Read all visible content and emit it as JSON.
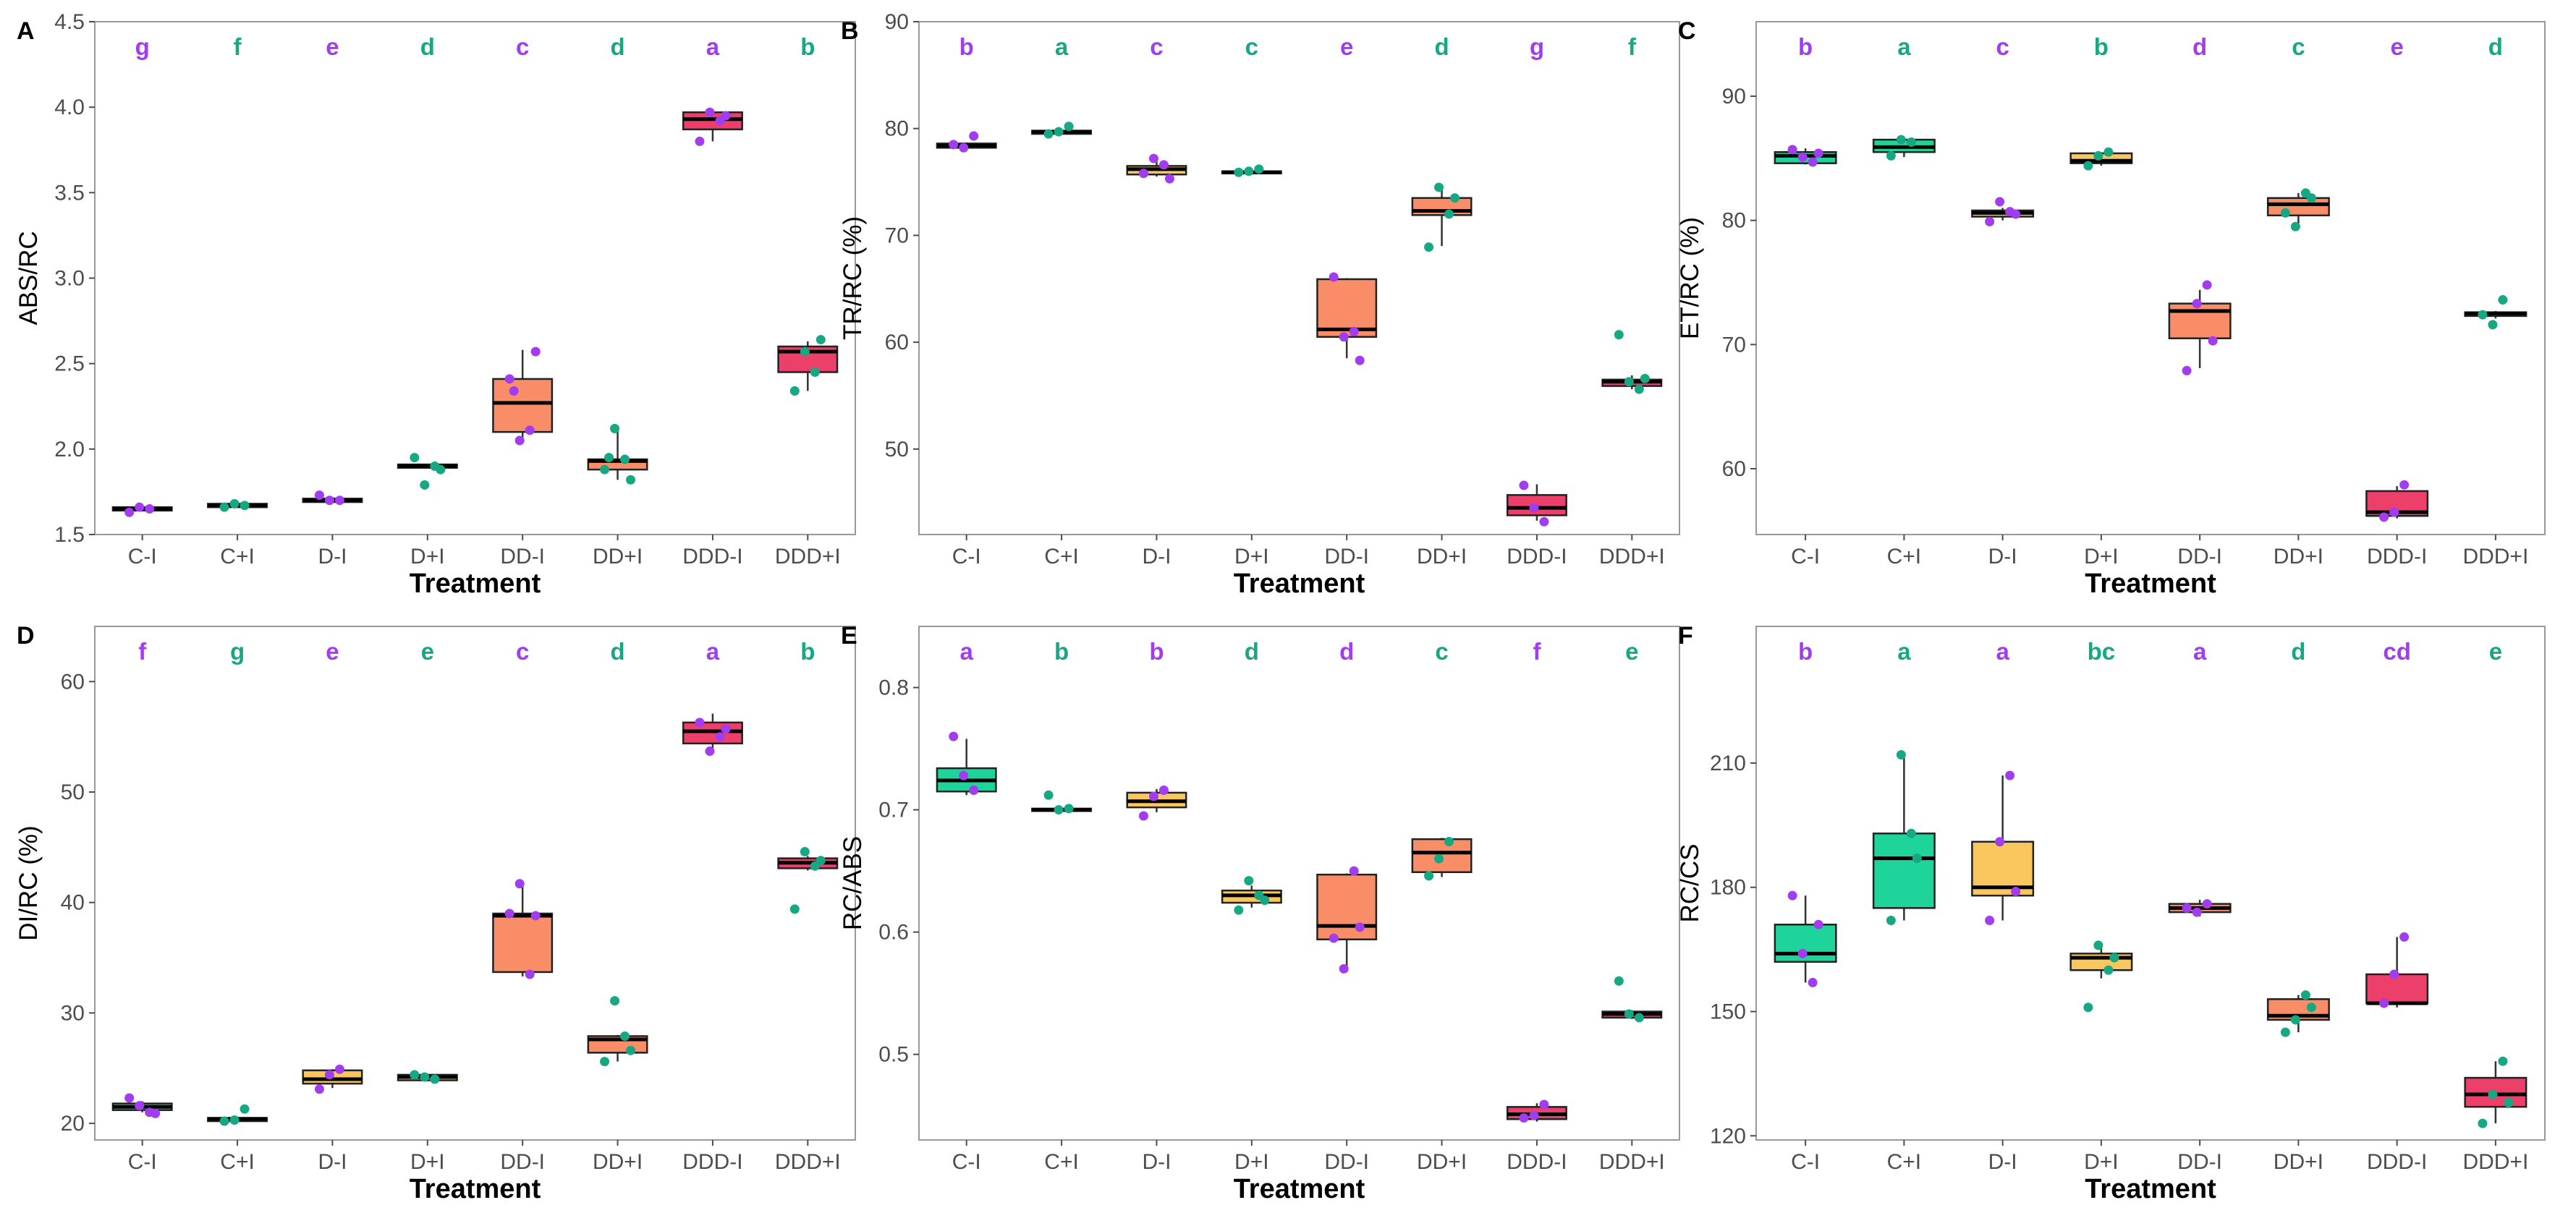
{
  "figure": {
    "point_colors": {
      "I_minus": "#a23cf0",
      "I_plus": "#16a882"
    },
    "box_colors": {
      "C": "#1fd49a",
      "D": "#f9c75d",
      "DD": "#f88d67",
      "DDD": "#ec3f6a"
    }
  },
  "chart_data": [
    {
      "type": "box",
      "panel": "A",
      "xlabel": "Treatment",
      "ylabel": "ABS/RC",
      "categories": [
        "C-I",
        "C+I",
        "D-I",
        "D+I",
        "DD-I",
        "DD+I",
        "DDD-I",
        "DDD+I"
      ],
      "ylim": [
        1.5,
        4.5
      ],
      "yticks": [
        1.5,
        2.0,
        2.5,
        3.0,
        3.5,
        4.0,
        4.5
      ],
      "ytick_labels": [
        "1.5",
        "2.0",
        "2.5",
        "3.0",
        "3.5",
        "4.0",
        "4.5"
      ],
      "letters": [
        "g",
        "f",
        "e",
        "d",
        "c",
        "d",
        "a",
        "b"
      ],
      "boxes": [
        {
          "q1": 1.64,
          "median": 1.65,
          "q3": 1.66,
          "lo": 1.64,
          "hi": 1.66,
          "points": [
            1.63,
            1.65,
            1.66
          ]
        },
        {
          "q1": 1.66,
          "median": 1.67,
          "q3": 1.68,
          "lo": 1.66,
          "hi": 1.68,
          "points": [
            1.66,
            1.67,
            1.68
          ]
        },
        {
          "q1": 1.69,
          "median": 1.7,
          "q3": 1.71,
          "lo": 1.69,
          "hi": 1.72,
          "points": [
            1.73,
            1.7,
            1.7
          ]
        },
        {
          "q1": 1.89,
          "median": 1.9,
          "q3": 1.91,
          "lo": 1.89,
          "hi": 1.91,
          "points": [
            1.95,
            1.9,
            1.79,
            1.88
          ]
        },
        {
          "q1": 2.1,
          "median": 2.27,
          "q3": 2.41,
          "lo": 2.05,
          "hi": 2.58,
          "points": [
            2.41,
            2.11,
            2.05,
            2.57,
            2.34
          ]
        },
        {
          "q1": 1.88,
          "median": 1.93,
          "q3": 1.94,
          "lo": 1.82,
          "hi": 2.12,
          "points": [
            1.88,
            1.94,
            2.12,
            1.82,
            1.95
          ]
        },
        {
          "q1": 3.87,
          "median": 3.93,
          "q3": 3.97,
          "lo": 3.8,
          "hi": 3.99,
          "points": [
            3.8,
            3.92,
            3.97,
            3.95
          ]
        },
        {
          "q1": 2.45,
          "median": 2.57,
          "q3": 2.6,
          "lo": 2.34,
          "hi": 2.63,
          "points": [
            2.34,
            2.45,
            2.57,
            2.64
          ]
        }
      ]
    },
    {
      "type": "box",
      "panel": "B",
      "xlabel": "Treatment",
      "ylabel": "TR/RC (%)",
      "categories": [
        "C-I",
        "C+I",
        "D-I",
        "D+I",
        "DD-I",
        "DD+I",
        "DDD-I",
        "DDD+I"
      ],
      "ylim": [
        42,
        90
      ],
      "yticks": [
        50,
        60,
        70,
        80,
        90
      ],
      "ytick_labels": [
        "50",
        "60",
        "70",
        "80",
        "90"
      ],
      "letters": [
        "b",
        "a",
        "c",
        "c",
        "e",
        "d",
        "g",
        "f"
      ],
      "boxes": [
        {
          "q1": 78.2,
          "median": 78.4,
          "q3": 78.6,
          "lo": 78.1,
          "hi": 78.7,
          "points": [
            78.5,
            79.3,
            78.2
          ]
        },
        {
          "q1": 79.5,
          "median": 79.7,
          "q3": 79.8,
          "lo": 79.4,
          "hi": 79.9,
          "points": [
            79.5,
            80.2,
            79.7
          ]
        },
        {
          "q1": 75.7,
          "median": 76.2,
          "q3": 76.5,
          "lo": 75.5,
          "hi": 77.0,
          "points": [
            75.8,
            76.6,
            77.2,
            75.3
          ]
        },
        {
          "q1": 75.8,
          "median": 75.9,
          "q3": 76.0,
          "lo": 75.7,
          "hi": 76.1,
          "points": [
            75.9,
            76.2,
            76.0
          ]
        },
        {
          "q1": 60.5,
          "median": 61.2,
          "q3": 65.9,
          "lo": 58.5,
          "hi": 66.0,
          "points": [
            66.1,
            61.0,
            60.5,
            58.3
          ]
        },
        {
          "q1": 71.9,
          "median": 72.3,
          "q3": 73.5,
          "lo": 69.0,
          "hi": 74.5,
          "points": [
            68.9,
            72.0,
            74.5,
            73.5
          ]
        },
        {
          "q1": 43.8,
          "median": 44.5,
          "q3": 45.7,
          "lo": 43.3,
          "hi": 46.7,
          "points": [
            46.6,
            43.2,
            44.5
          ]
        },
        {
          "q1": 55.9,
          "median": 56.3,
          "q3": 56.5,
          "lo": 55.6,
          "hi": 56.9,
          "points": [
            60.7,
            55.6,
            56.3,
            56.6
          ]
        }
      ]
    },
    {
      "type": "box",
      "panel": "C",
      "xlabel": "Treatment",
      "ylabel": "ET/RC (%)",
      "categories": [
        "C-I",
        "C+I",
        "D-I",
        "D+I",
        "DD-I",
        "DD+I",
        "DDD-I",
        "DDD+I"
      ],
      "ylim": [
        54.7,
        96
      ],
      "yticks": [
        60,
        70,
        80,
        90
      ],
      "ytick_labels": [
        "60",
        "70",
        "80",
        "90"
      ],
      "letters": [
        "b",
        "a",
        "c",
        "b",
        "d",
        "c",
        "e",
        "d"
      ],
      "boxes": [
        {
          "q1": 84.6,
          "median": 85.2,
          "q3": 85.5,
          "lo": 84.5,
          "hi": 85.8,
          "points": [
            85.7,
            84.7,
            85.1,
            85.4
          ]
        },
        {
          "q1": 85.5,
          "median": 85.9,
          "q3": 86.5,
          "lo": 85.1,
          "hi": 86.7,
          "points": [
            85.2,
            86.3,
            86.5
          ]
        },
        {
          "q1": 80.3,
          "median": 80.6,
          "q3": 80.8,
          "lo": 80.0,
          "hi": 81.0,
          "points": [
            79.9,
            80.7,
            81.5,
            80.5
          ]
        },
        {
          "q1": 84.6,
          "median": 84.8,
          "q3": 85.4,
          "lo": 84.4,
          "hi": 85.5,
          "points": [
            84.4,
            85.5,
            85.2
          ]
        },
        {
          "q1": 70.5,
          "median": 72.7,
          "q3": 73.3,
          "lo": 68.1,
          "hi": 74.4,
          "points": [
            67.9,
            74.8,
            73.3,
            70.3
          ]
        },
        {
          "q1": 80.4,
          "median": 81.3,
          "q3": 81.8,
          "lo": 79.6,
          "hi": 82.2,
          "points": [
            80.6,
            82.2,
            79.5,
            81.8
          ]
        },
        {
          "q1": 56.2,
          "median": 56.5,
          "q3": 58.2,
          "lo": 56.0,
          "hi": 58.6,
          "points": [
            56.1,
            58.7,
            56.5
          ]
        },
        {
          "q1": 72.3,
          "median": 72.5,
          "q3": 72.6,
          "lo": 72.1,
          "hi": 72.7,
          "points": [
            72.4,
            73.6,
            71.6
          ]
        }
      ]
    },
    {
      "type": "box",
      "panel": "D",
      "xlabel": "Treatment",
      "ylabel": "DI/RC (%)",
      "categories": [
        "C-I",
        "C+I",
        "D-I",
        "D+I",
        "DD-I",
        "DD+I",
        "DDD-I",
        "DDD+I"
      ],
      "ylim": [
        18.5,
        65
      ],
      "yticks": [
        20,
        30,
        40,
        50,
        60
      ],
      "ytick_labels": [
        "20",
        "30",
        "40",
        "50",
        "60"
      ],
      "letters": [
        "f",
        "g",
        "e",
        "e",
        "c",
        "d",
        "a",
        "b"
      ],
      "boxes": [
        {
          "q1": 21.2,
          "median": 21.5,
          "q3": 21.8,
          "lo": 21.0,
          "hi": 22.0,
          "points": [
            22.3,
            21.0,
            21.6,
            20.9
          ]
        },
        {
          "q1": 20.2,
          "median": 20.4,
          "q3": 20.5,
          "lo": 20.1,
          "hi": 20.6,
          "points": [
            20.2,
            21.3,
            20.3
          ]
        },
        {
          "q1": 23.6,
          "median": 24.0,
          "q3": 24.8,
          "lo": 23.2,
          "hi": 24.9,
          "points": [
            23.1,
            24.9,
            24.4
          ]
        },
        {
          "q1": 23.9,
          "median": 24.2,
          "q3": 24.4,
          "lo": 23.8,
          "hi": 24.5,
          "points": [
            24.4,
            24.0,
            24.2
          ]
        },
        {
          "q1": 33.7,
          "median": 38.8,
          "q3": 39.0,
          "lo": 33.3,
          "hi": 41.7,
          "points": [
            39.0,
            33.5,
            41.7,
            38.8
          ]
        },
        {
          "q1": 26.4,
          "median": 27.6,
          "q3": 27.9,
          "lo": 25.6,
          "hi": 28.0,
          "points": [
            25.6,
            27.9,
            31.1,
            26.6
          ]
        },
        {
          "q1": 54.4,
          "median": 55.5,
          "q3": 56.3,
          "lo": 53.8,
          "hi": 57.1,
          "points": [
            56.3,
            55.0,
            53.7,
            55.7
          ]
        },
        {
          "q1": 43.1,
          "median": 43.6,
          "q3": 44.0,
          "lo": 42.9,
          "hi": 44.2,
          "points": [
            39.4,
            43.3,
            44.6,
            43.8
          ]
        }
      ]
    },
    {
      "type": "box",
      "panel": "E",
      "xlabel": "Treatment",
      "ylabel": "RC/ABS",
      "categories": [
        "C-I",
        "C+I",
        "D-I",
        "D+I",
        "DD-I",
        "DD+I",
        "DDD-I",
        "DDD+I"
      ],
      "ylim": [
        0.43,
        0.85
      ],
      "yticks": [
        0.5,
        0.6,
        0.7,
        0.8
      ],
      "ytick_labels": [
        "0.5",
        "0.6",
        "0.7",
        "0.8"
      ],
      "letters": [
        "a",
        "b",
        "b",
        "d",
        "d",
        "c",
        "f",
        "e"
      ],
      "boxes": [
        {
          "q1": 0.715,
          "median": 0.724,
          "q3": 0.734,
          "lo": 0.712,
          "hi": 0.758,
          "points": [
            0.76,
            0.716,
            0.728
          ]
        },
        {
          "q1": 0.699,
          "median": 0.7,
          "q3": 0.701,
          "lo": 0.698,
          "hi": 0.702,
          "points": [
            0.712,
            0.701,
            0.7
          ]
        },
        {
          "q1": 0.702,
          "median": 0.707,
          "q3": 0.714,
          "lo": 0.698,
          "hi": 0.717,
          "points": [
            0.695,
            0.716,
            0.711
          ]
        },
        {
          "q1": 0.624,
          "median": 0.63,
          "q3": 0.634,
          "lo": 0.62,
          "hi": 0.638,
          "points": [
            0.618,
            0.63,
            0.642,
            0.626
          ]
        },
        {
          "q1": 0.594,
          "median": 0.605,
          "q3": 0.647,
          "lo": 0.57,
          "hi": 0.648,
          "points": [
            0.595,
            0.65,
            0.57,
            0.604
          ]
        },
        {
          "q1": 0.649,
          "median": 0.665,
          "q3": 0.676,
          "lo": 0.645,
          "hi": 0.677,
          "points": [
            0.646,
            0.674,
            0.66
          ]
        },
        {
          "q1": 0.447,
          "median": 0.451,
          "q3": 0.457,
          "lo": 0.445,
          "hi": 0.46,
          "points": [
            0.448,
            0.459,
            0.45
          ]
        },
        {
          "q1": 0.53,
          "median": 0.533,
          "q3": 0.535,
          "lo": 0.529,
          "hi": 0.536,
          "points": [
            0.56,
            0.53,
            0.533
          ]
        }
      ]
    },
    {
      "type": "box",
      "panel": "F",
      "xlabel": "Treatment",
      "ylabel": "RC/CS",
      "categories": [
        "C-I",
        "C+I",
        "D-I",
        "D+I",
        "DD-I",
        "DD+I",
        "DDD-I",
        "DDD+I"
      ],
      "ylim": [
        119,
        243
      ],
      "yticks": [
        120,
        150,
        180,
        210
      ],
      "ytick_labels": [
        "120",
        "150",
        "180",
        "210"
      ],
      "letters": [
        "b",
        "a",
        "a",
        "bc",
        "a",
        "d",
        "cd",
        "e"
      ],
      "boxes": [
        {
          "q1": 162,
          "median": 164,
          "q3": 171,
          "lo": 157,
          "hi": 178,
          "points": [
            178,
            157,
            164,
            171
          ]
        },
        {
          "q1": 175,
          "median": 187,
          "q3": 193,
          "lo": 172,
          "hi": 212,
          "points": [
            172,
            193,
            212,
            187
          ]
        },
        {
          "q1": 178,
          "median": 180,
          "q3": 191,
          "lo": 172,
          "hi": 207,
          "points": [
            172,
            207,
            191,
            179
          ]
        },
        {
          "q1": 160,
          "median": 163,
          "q3": 164,
          "lo": 158,
          "hi": 166,
          "points": [
            151,
            160,
            166,
            163
          ]
        },
        {
          "q1": 174,
          "median": 175,
          "q3": 176,
          "lo": 173,
          "hi": 177,
          "points": [
            175,
            176,
            174
          ]
        },
        {
          "q1": 148,
          "median": 149,
          "q3": 153,
          "lo": 145,
          "hi": 154,
          "points": [
            145,
            154,
            148,
            151
          ]
        },
        {
          "q1": 152,
          "median": 152,
          "q3": 159,
          "lo": 151,
          "hi": 168,
          "points": [
            152,
            168,
            159
          ]
        },
        {
          "q1": 127,
          "median": 130,
          "q3": 134,
          "lo": 123,
          "hi": 138,
          "points": [
            123,
            138,
            130,
            128
          ]
        }
      ]
    }
  ]
}
